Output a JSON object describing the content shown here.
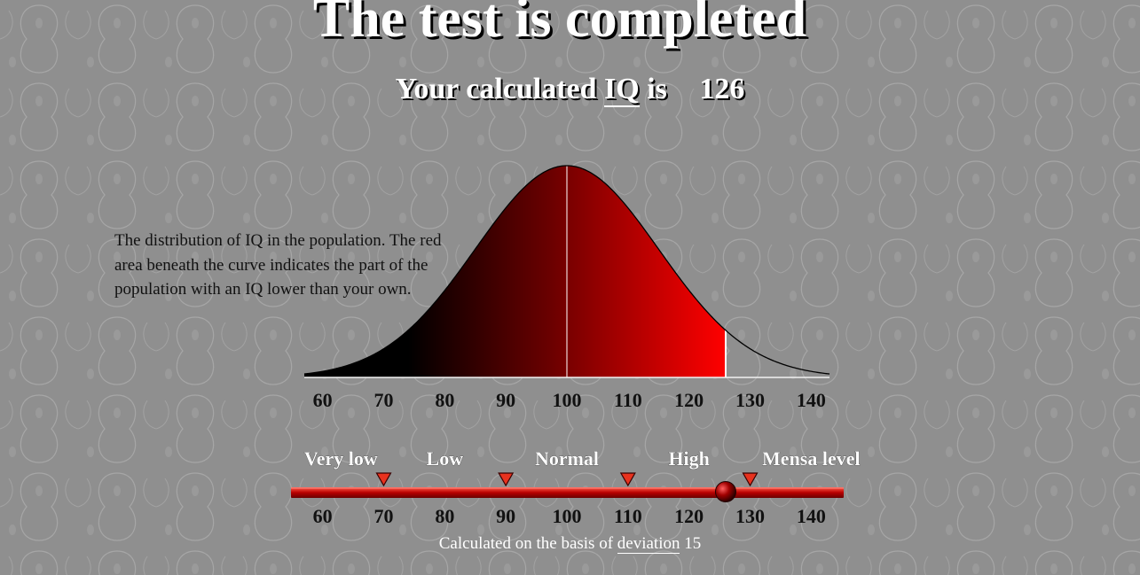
{
  "title": "The test is completed",
  "result": {
    "prefix": "Your calculated",
    "iq_link": "IQ",
    "suffix": "is",
    "score": "126"
  },
  "description": "The distribution of IQ in the population. The red area beneath the curve indicates the part of the population with an IQ lower than your own.",
  "footnote": {
    "prefix": "Calculated on the basis of",
    "link": "deviation",
    "value": "15"
  },
  "colors": {
    "background": "#8f8f8f",
    "fill_start": "#000000",
    "fill_mid": "#6b0000",
    "fill_end": "#ff0000",
    "marker": "#e8321e"
  },
  "chart_data": [
    {
      "type": "area",
      "description": "Normal distribution of IQ (mean 100, deviation 15); area shaded red up to the user's score",
      "mean": 100,
      "sd": 15,
      "xlim": [
        57,
        143
      ],
      "x_ticks": [
        60,
        70,
        80,
        90,
        100,
        110,
        120,
        130,
        140
      ],
      "shaded_to": 126,
      "mean_line": 100
    },
    {
      "type": "scale",
      "description": "IQ classification scale with the user's position",
      "xlim": [
        57,
        143
      ],
      "x_ticks": [
        60,
        70,
        80,
        90,
        100,
        110,
        120,
        130,
        140
      ],
      "categories": [
        "Very low",
        "Low",
        "Normal",
        "High",
        "Mensa level"
      ],
      "category_centers": [
        63,
        80,
        100,
        120,
        140
      ],
      "boundaries": [
        70,
        90,
        110,
        130
      ],
      "value": 126
    }
  ]
}
